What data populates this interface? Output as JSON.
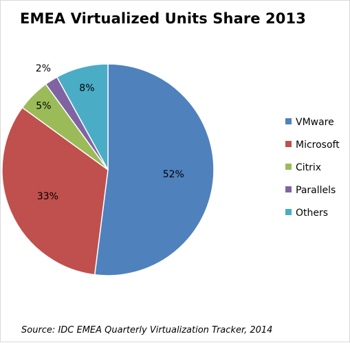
{
  "chart_data": {
    "type": "pie",
    "title": "EMEA Virtualized Units Share 2013",
    "slices": [
      {
        "label": "VMware",
        "value": 52,
        "display": "52%",
        "color": "#4f81bd"
      },
      {
        "label": "Microsoft",
        "value": 33,
        "display": "33%",
        "color": "#c0504d"
      },
      {
        "label": "Citrix",
        "value": 5,
        "display": "5%",
        "color": "#9bbb59"
      },
      {
        "label": "Parallels",
        "value": 2,
        "display": "2%",
        "color": "#8064a2"
      },
      {
        "label": "Others",
        "value": 8,
        "display": "8%",
        "color": "#4bacc6"
      }
    ],
    "legend_position": "right",
    "source": "Source: IDC EMEA Quarterly Virtualization Tracker, 2014"
  }
}
